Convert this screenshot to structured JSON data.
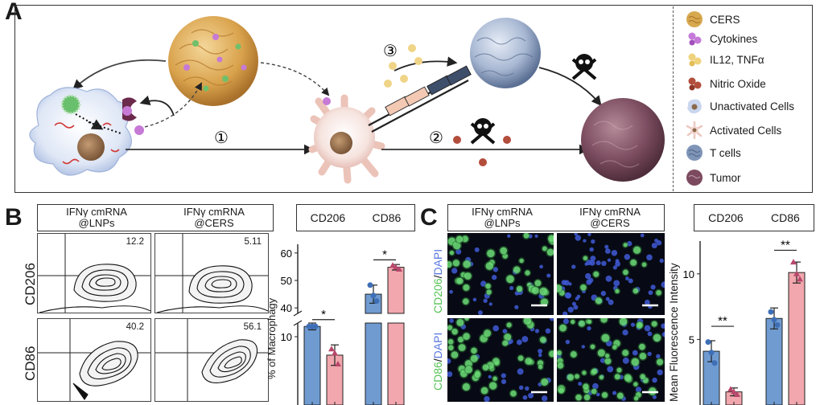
{
  "panels": {
    "a": "A",
    "b": "B",
    "c": "C"
  },
  "panel_a": {
    "steps": [
      "①",
      "②",
      "③"
    ],
    "legend": [
      {
        "label": "CERS",
        "icon": "cers-nanoparticle-icon",
        "color": "#d7a94e"
      },
      {
        "label": "Cytokines",
        "icon": "cytokine-icon",
        "color": "#c57ad8"
      },
      {
        "label": "IL12, TNFα",
        "icon": "il12-tnf-icon",
        "color": "#efd27c"
      },
      {
        "label": "Nitric Oxide",
        "icon": "nitric-oxide-icon",
        "color": "#b34d3c"
      },
      {
        "label": "Unactivated Cells",
        "icon": "unactivated-cell-icon",
        "color": "#c9d6ee"
      },
      {
        "label": "Activated Cells",
        "icon": "activated-cell-icon",
        "color": "#ecc8c0"
      },
      {
        "label": "T cells",
        "icon": "t-cell-icon",
        "color": "#7f95b8"
      },
      {
        "label": "Tumor",
        "icon": "tumor-icon",
        "color": "#7c4a5f"
      }
    ]
  },
  "panel_b": {
    "col_headers": [
      {
        "line1": "IFNγ cmRNA",
        "line2": "@LNPs"
      },
      {
        "line1": "IFNγ cmRNA",
        "line2": "@CERS"
      }
    ],
    "row_labels": [
      "CD206",
      "CD86"
    ],
    "quadrant_values": [
      [
        "12.2",
        "5.11"
      ],
      [
        "40.2",
        "56.1"
      ]
    ]
  },
  "chart_b": {
    "type": "bar",
    "group_labels": [
      "CD206",
      "CD86"
    ],
    "ylabel": "% of Macrophagy",
    "lower_ticks": [
      "10"
    ],
    "upper_ticks": [
      "40",
      "50",
      "60"
    ],
    "lower_range": [
      0,
      12
    ],
    "upper_range": [
      38,
      62
    ],
    "bars": [
      {
        "group": "CD206",
        "condition": "LNPs",
        "value": 11.5,
        "error": 0.5,
        "points": [
          11.5,
          11.5,
          11.5
        ],
        "color": "#6f9bd1"
      },
      {
        "group": "CD206",
        "condition": "CERS",
        "value": 7.3,
        "error": 1.5,
        "points": [
          8.2,
          7.6,
          6.0
        ],
        "color": "#f1a7ad"
      },
      {
        "group": "CD86",
        "condition": "LNPs",
        "value": 45,
        "error": 3.3,
        "points": [
          48.3,
          44.5,
          42.5
        ],
        "color": "#6f9bd1"
      },
      {
        "group": "CD86",
        "condition": "CERS",
        "value": 54.8,
        "error": 1,
        "points": [
          55.5,
          54.8,
          54.1
        ],
        "color": "#f1a7ad"
      }
    ],
    "significance": [
      "*",
      "*"
    ]
  },
  "panel_c": {
    "col_headers": [
      {
        "line1": "IFNγ cmRNA",
        "line2": "@LNPs"
      },
      {
        "line1": "IFNγ cmRNA",
        "line2": "@CERS"
      }
    ],
    "row_labels": [
      {
        "marker": "CD206",
        "sep": "/",
        "stain": "DAPI"
      },
      {
        "marker": "CD86",
        "sep": "/",
        "stain": "DAPI"
      }
    ]
  },
  "chart_c": {
    "type": "bar",
    "group_labels": [
      "CD206",
      "CD86"
    ],
    "ylabel": "Mean Fluorescence Intensity",
    "yticks": [
      "5",
      "10"
    ],
    "ylim": [
      0,
      12.5
    ],
    "bars": [
      {
        "group": "CD206",
        "condition": "LNPs",
        "value": 4.1,
        "error": 0.8,
        "points": [
          4.8,
          4.0,
          3.2
        ],
        "color": "#6f9bd1"
      },
      {
        "group": "CD206",
        "condition": "CERS",
        "value": 1.0,
        "error": 0.3,
        "points": [
          1.2,
          1.0,
          0.8
        ],
        "color": "#f1a7ad"
      },
      {
        "group": "CD86",
        "condition": "LNPs",
        "value": 6.6,
        "error": 0.8,
        "points": [
          7.1,
          6.5,
          6.1
        ],
        "color": "#6f9bd1"
      },
      {
        "group": "CD86",
        "condition": "CERS",
        "value": 10.1,
        "error": 0.8,
        "points": [
          10.9,
          10.0,
          9.6
        ],
        "color": "#f1a7ad"
      }
    ],
    "significance": [
      "**",
      "**"
    ]
  }
}
